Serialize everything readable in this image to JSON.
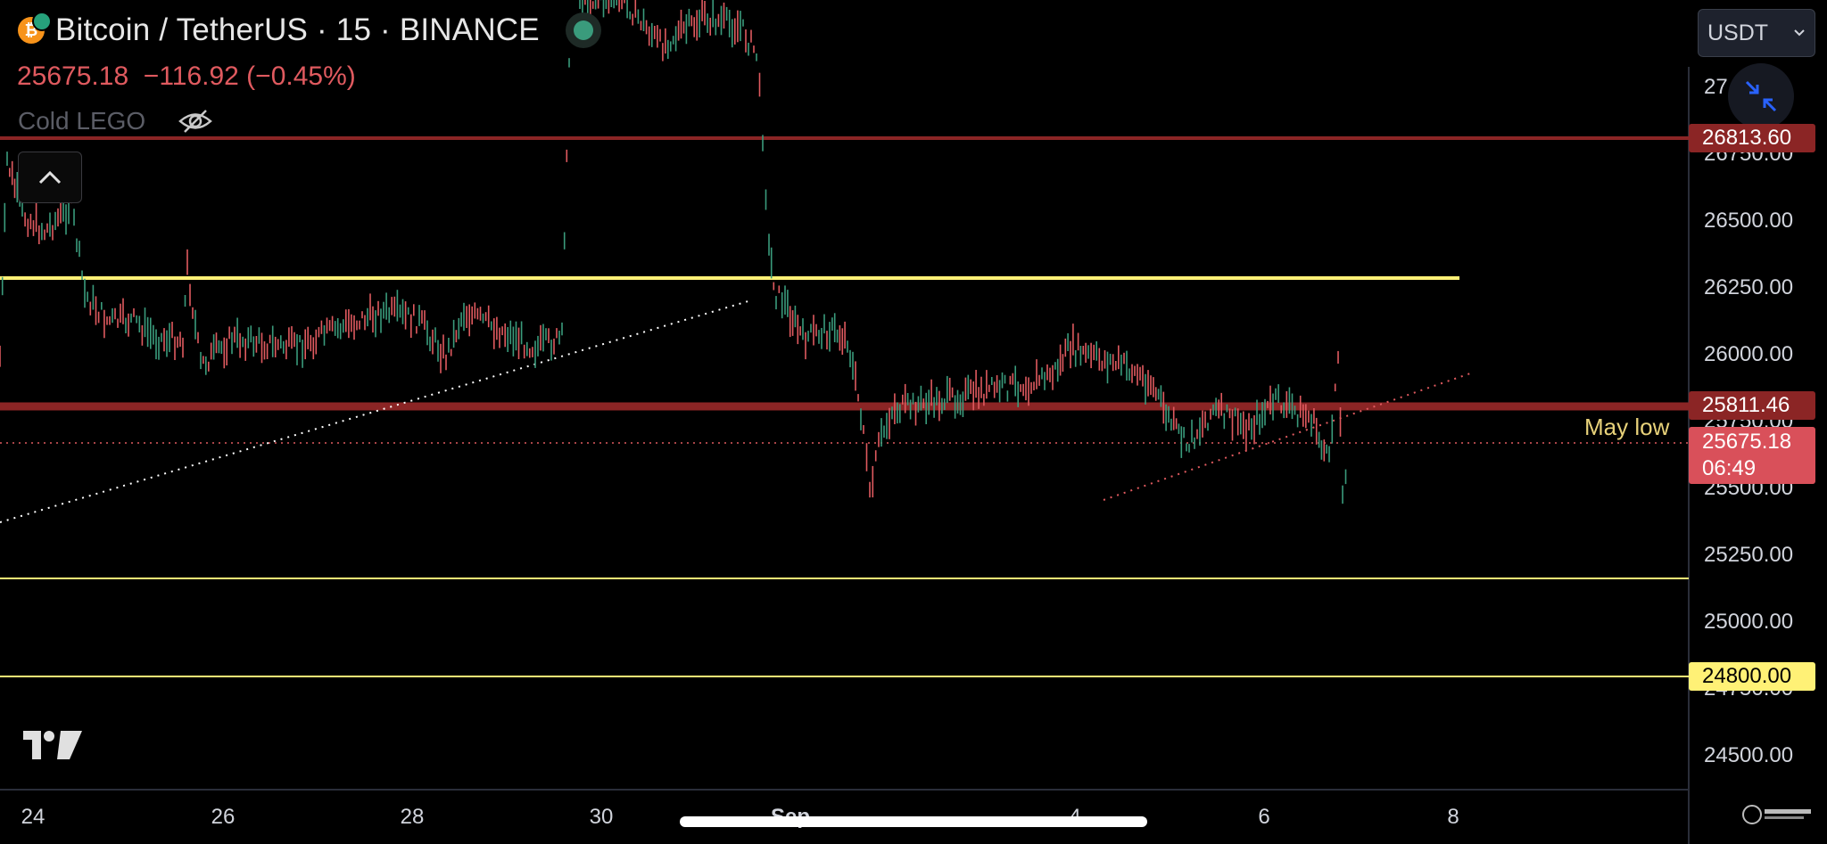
{
  "header": {
    "symbol_title": "Bitcoin / TetherUS · 15 · BINANCE",
    "price_line": "25675.18  −116.92 (−0.45%)",
    "indicator_name": "Cold LEGO",
    "coin_glyph": "₿",
    "icons": [
      "bitcoin-icon",
      "eye-off-icon",
      "chevron-up-icon",
      "collapse-arrows-icon"
    ]
  },
  "currency_selector": {
    "selected": "USDT"
  },
  "price_axis": {
    "ticks": [
      "27",
      "26750.00",
      "26500.00",
      "26250.00",
      "26000.00",
      "25750.00",
      "25500.00",
      "25250.00",
      "25000.00",
      "24750.00",
      "24500.00"
    ],
    "labels": [
      {
        "text": "26813.60",
        "bg": "#8b2525",
        "color": "#ffffff"
      },
      {
        "text": "25811.46",
        "bg": "#8b2525",
        "color": "#ffffff"
      },
      {
        "text": "25675.18",
        "sub": "06:49",
        "bg": "#d9505a",
        "color": "#ffffff"
      },
      {
        "text": "24800.00",
        "bg": "#fff176",
        "color": "#000000"
      }
    ]
  },
  "time_axis": {
    "ticks": [
      "24",
      "26",
      "28",
      "30",
      "Sep",
      "4",
      "6",
      "8"
    ]
  },
  "annotations": {
    "may_low": "May low"
  },
  "colors": {
    "background": "#000000",
    "down": "#e05a5f",
    "up": "#3a9b7c",
    "support_yellow": "#fff176",
    "resistance_red": "#8b2525"
  }
}
